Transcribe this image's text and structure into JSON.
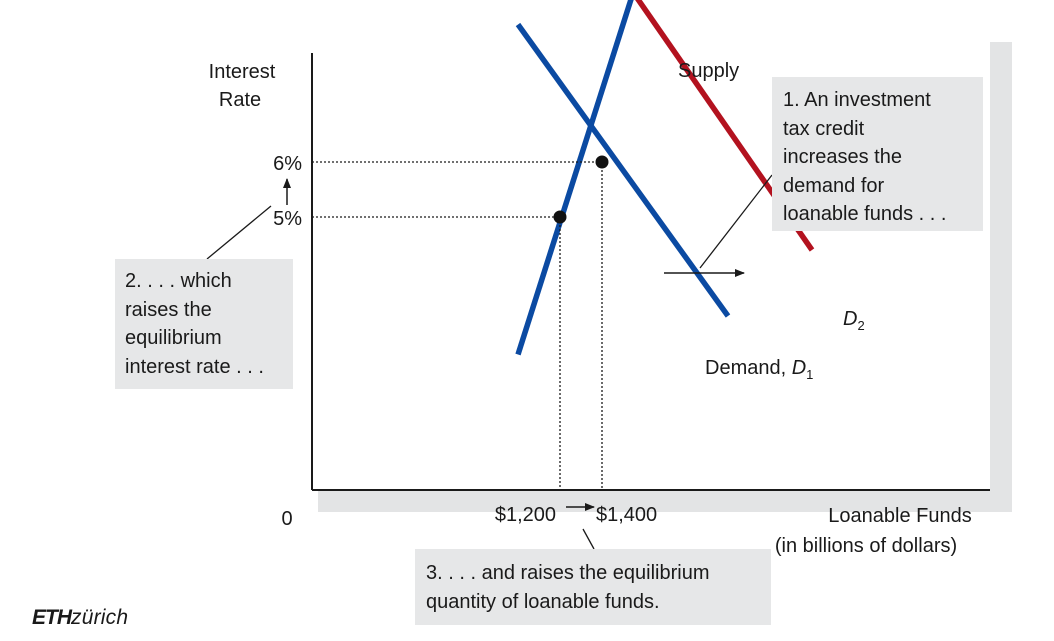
{
  "chart_data": {
    "type": "line",
    "ylabel_lines": [
      "Interest",
      "Rate"
    ],
    "xlabel_lines": [
      "Loanable Funds",
      "(in billions of dollars)"
    ],
    "origin_label": "0",
    "y_ticks": [
      {
        "label": "6%",
        "value": 6
      },
      {
        "label": "5%",
        "value": 5
      }
    ],
    "x_ticks": [
      {
        "label": "$1,200",
        "value": 1200
      },
      {
        "label": "$1,400",
        "value": 1400
      }
    ],
    "series": [
      {
        "name": "Supply",
        "role": "supply",
        "color": "#0b4aa2",
        "points": [
          [
            1000,
            2.5
          ],
          [
            1600,
            9.7
          ]
        ]
      },
      {
        "name": "Demand, D1",
        "role": "demand",
        "color": "#0b4aa2",
        "label_text": "Demand, ",
        "label_sub_base": "D",
        "label_sub": "1",
        "points": [
          [
            1000,
            8.5
          ],
          [
            2000,
            3.2
          ]
        ]
      },
      {
        "name": "D2",
        "role": "demand",
        "color": "#b3121f",
        "label_sub_base": "D",
        "label_sub": "2",
        "points": [
          [
            1400,
            9.9
          ],
          [
            2400,
            4.4
          ]
        ]
      }
    ],
    "equilibria": [
      {
        "x": 1200,
        "y": 5
      },
      {
        "x": 1400,
        "y": 6
      }
    ]
  },
  "annotations": {
    "note1": "1. An investment\ntax credit\nincreases the\ndemand for\nloanable funds . . .",
    "note2": "2. . . . which\nraises the\nequilibrium\ninterest rate . . .",
    "note3": "3. . . . and raises the equilibrium\nquantity of loanable funds."
  },
  "logo": {
    "bold": "ETH",
    "rest": "zürich"
  }
}
